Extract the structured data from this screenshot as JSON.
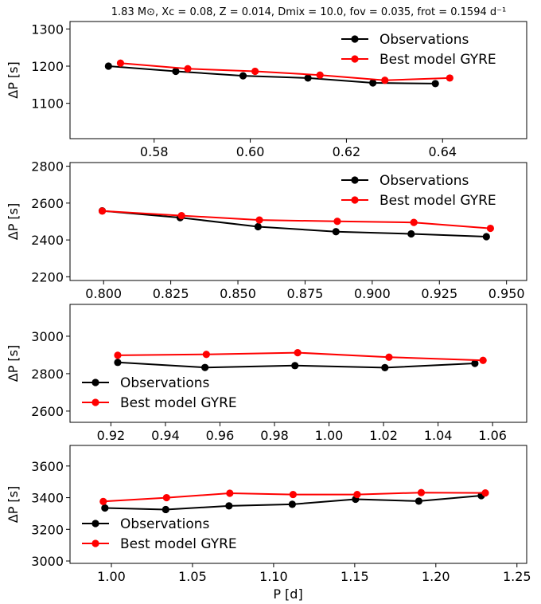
{
  "title": "1.83 M⊙, Xc = 0.08, Z = 0.014, Dmix = 10.0, fov = 0.035, frot = 0.1594 d⁻¹",
  "xlabel": "P [d]",
  "colors": {
    "observations": "#000000",
    "model": "#ff0000"
  },
  "chart_data": [
    {
      "type": "line",
      "ylabel": "ΔP [s]",
      "xlim": [
        0.5625,
        0.6575
      ],
      "ylim": [
        1005,
        1320
      ],
      "xticks": [
        0.58,
        0.6,
        0.62,
        0.64
      ],
      "xtick_labels": [
        "0.58",
        "0.60",
        "0.62",
        "0.64"
      ],
      "yticks": [
        1100,
        1200,
        1300
      ],
      "ytick_labels": [
        "1100",
        "1200",
        "1300"
      ],
      "legend_position": "top-right",
      "series": [
        {
          "name": "Observations",
          "x": [
            0.5705,
            0.5845,
            0.5985,
            0.612,
            0.6255,
            0.6385
          ],
          "y": [
            1200,
            1186,
            1174,
            1168,
            1155,
            1153
          ]
        },
        {
          "name": "Best model GYRE",
          "x": [
            0.573,
            0.587,
            0.601,
            0.6145,
            0.628,
            0.6415
          ],
          "y": [
            1208,
            1193,
            1186,
            1176,
            1162,
            1168
          ]
        }
      ]
    },
    {
      "type": "line",
      "ylabel": "ΔP [s]",
      "xlim": [
        0.7875,
        0.9575
      ],
      "ylim": [
        2180,
        2820
      ],
      "xticks": [
        0.8,
        0.825,
        0.85,
        0.875,
        0.9,
        0.925,
        0.95
      ],
      "xtick_labels": [
        "0.800",
        "0.825",
        "0.850",
        "0.875",
        "0.900",
        "0.925",
        "0.950"
      ],
      "yticks": [
        2200,
        2400,
        2600,
        2800
      ],
      "ytick_labels": [
        "2200",
        "2400",
        "2600",
        "2800"
      ],
      "legend_position": "top-right",
      "series": [
        {
          "name": "Observations",
          "x": [
            0.7995,
            0.8285,
            0.8575,
            0.8865,
            0.9145,
            0.9425
          ],
          "y": [
            2558,
            2521,
            2472,
            2445,
            2433,
            2418
          ]
        },
        {
          "name": "Best model GYRE",
          "x": [
            0.7995,
            0.829,
            0.858,
            0.887,
            0.9155,
            0.944
          ],
          "y": [
            2557,
            2532,
            2508,
            2501,
            2495,
            2463
          ]
        }
      ]
    },
    {
      "type": "line",
      "ylabel": "ΔP [s]",
      "xlim": [
        0.905,
        1.0725
      ],
      "ylim": [
        2540,
        3170
      ],
      "xticks": [
        0.92,
        0.94,
        0.96,
        0.98,
        1.0,
        1.02,
        1.04,
        1.06
      ],
      "xtick_labels": [
        "0.92",
        "0.94",
        "0.96",
        "0.98",
        "1.00",
        "1.02",
        "1.04",
        "1.06"
      ],
      "yticks": [
        2600,
        2800,
        3000
      ],
      "ytick_labels": [
        "2600",
        "2800",
        "3000"
      ],
      "legend_position": "bottom-left",
      "series": [
        {
          "name": "Observations",
          "x": [
            0.9225,
            0.9545,
            0.9875,
            1.0205,
            1.0535
          ],
          "y": [
            2860,
            2833,
            2843,
            2832,
            2855
          ]
        },
        {
          "name": "Best model GYRE",
          "x": [
            0.9225,
            0.955,
            0.9885,
            1.022,
            1.0565
          ],
          "y": [
            2898,
            2903,
            2912,
            2888,
            2871
          ]
        }
      ]
    },
    {
      "type": "line",
      "ylabel": "ΔP [s]",
      "xlim": [
        0.9745,
        1.256
      ],
      "ylim": [
        2985,
        3730
      ],
      "xticks": [
        1.0,
        1.05,
        1.1,
        1.15,
        1.2,
        1.25
      ],
      "xtick_labels": [
        "1.00",
        "1.05",
        "1.10",
        "1.15",
        "1.20",
        "1.25"
      ],
      "yticks": [
        3000,
        3200,
        3400,
        3600
      ],
      "ytick_labels": [
        "3000",
        "3200",
        "3400",
        "3600"
      ],
      "legend_position": "bottom-left",
      "series": [
        {
          "name": "Observations",
          "x": [
            0.996,
            1.0335,
            1.0725,
            1.1115,
            1.1505,
            1.1895,
            1.228
          ],
          "y": [
            3335,
            3325,
            3348,
            3358,
            3390,
            3378,
            3413
          ]
        },
        {
          "name": "Best model GYRE",
          "x": [
            0.995,
            1.034,
            1.073,
            1.112,
            1.1515,
            1.191,
            1.2305
          ],
          "y": [
            3376,
            3400,
            3428,
            3420,
            3420,
            3432,
            3430
          ]
        }
      ]
    }
  ]
}
